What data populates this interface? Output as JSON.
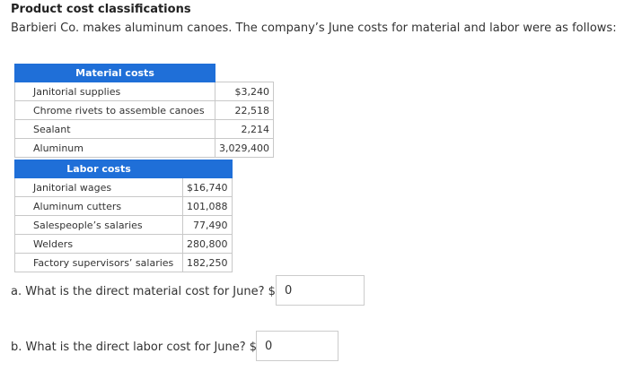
{
  "title": "Product cost classifications",
  "intro": "Barbieri Co. makes aluminum canoes. The company’s June costs for material and labor were as follows:",
  "material": {
    "header": "Material costs",
    "rows": [
      {
        "label": "Janitorial supplies",
        "value": "$3,240"
      },
      {
        "label": "Chrome rivets to assemble canoes",
        "value": "22,518"
      },
      {
        "label": "Sealant",
        "value": "2,214"
      },
      {
        "label": "Aluminum",
        "value": "3,029,400"
      }
    ]
  },
  "labor": {
    "header": "Labor costs",
    "rows": [
      {
        "label": "Janitorial wages",
        "value": "$16,740"
      },
      {
        "label": "Aluminum cutters",
        "value": "101,088"
      },
      {
        "label": "Salespeople’s salaries",
        "value": "77,490"
      },
      {
        "label": "Welders",
        "value": "280,800"
      },
      {
        "label": "Factory supervisors’ salaries",
        "value": "182,250"
      }
    ]
  },
  "questions": {
    "a": {
      "text": "a. What is the direct material cost for June? $",
      "answer": "0"
    },
    "b": {
      "text": "b. What is the direct labor cost for June? $",
      "answer": "0"
    }
  },
  "colors": {
    "header_bg": "#1f6fd8",
    "header_text": "#ffffff",
    "border": "#c8c8c8"
  }
}
